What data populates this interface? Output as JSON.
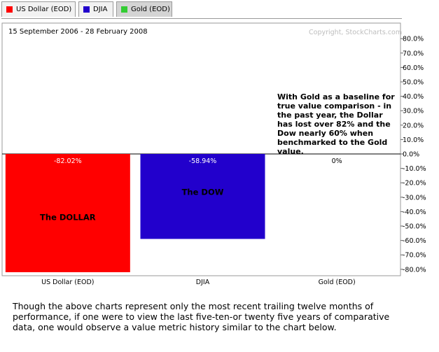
{
  "tabs": [
    {
      "label": "US Dollar (EOD)",
      "color": "#ff0000",
      "active": false
    },
    {
      "label": "DJIA",
      "color": "#2200cc",
      "active": false
    },
    {
      "label": "Gold (EOD)",
      "color": "#33cc33",
      "active": true
    }
  ],
  "date_range": "15 September 2006 - 28 February 2008",
  "copyright": "Copyright, StockCharts.com",
  "note": "With Gold as a baseline for true value comparison - in the past year, the Dollar has lost over 82% and the Dow nearly 60% when benchmarked to the Gold value.",
  "caption": "Though the above charts represent only the most recent trailing twelve months of performance, if one were to view the last five-ten-or twenty five years of comparative data, one would observe a value metric history similar to the chart below.",
  "chart_data": {
    "type": "bar",
    "categories": [
      "US Dollar (EOD)",
      "DJIA",
      "Gold (EOD)"
    ],
    "values": [
      -82.02,
      -58.94,
      0
    ],
    "value_labels": [
      "-82.02%",
      "-58.94%",
      "0%"
    ],
    "bar_labels": [
      "The DOLLAR",
      "The DOW",
      ""
    ],
    "colors": [
      "#ff0000",
      "#2200cc",
      "#33cc33"
    ],
    "ylim": [
      -85,
      85
    ],
    "yticks": [
      80,
      70,
      60,
      50,
      40,
      30,
      20,
      10,
      0,
      -10,
      -20,
      -30,
      -40,
      -50,
      -60,
      -70,
      -80
    ],
    "ytick_labels": [
      "80.0%",
      "70.0%",
      "60.0%",
      "50.0%",
      "40.0%",
      "30.0%",
      "20.0%",
      "10.0%",
      "0.0%",
      "-10.0%",
      "-20.0%",
      "-30.0%",
      "-40.0%",
      "-50.0%",
      "-60.0%",
      "-70.0%",
      "-80.0%"
    ],
    "grid": false,
    "axis_side": "right"
  }
}
